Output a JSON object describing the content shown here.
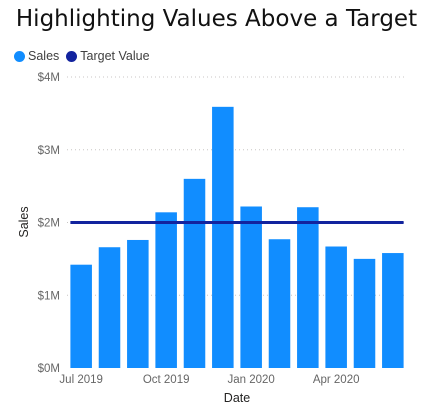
{
  "title": "Highlighting Values Above a Target",
  "legend": [
    {
      "label": "Sales",
      "color": "#118DFF"
    },
    {
      "label": "Target Value",
      "color": "#12239E"
    }
  ],
  "chart_data": {
    "type": "bar",
    "title": "Highlighting Values Above a Target",
    "xlabel": "Date",
    "ylabel": "Sales",
    "categories": [
      "2019-07",
      "2019-08",
      "2019-09",
      "2019-10",
      "2019-11",
      "2019-12",
      "2020-01",
      "2020-02",
      "2020-03",
      "2020-04",
      "2020-05",
      "2020-06"
    ],
    "x_tick_labels": [
      {
        "label": "Jul 2019",
        "category": "2019-07"
      },
      {
        "label": "Oct 2019",
        "category": "2019-10"
      },
      {
        "label": "Jan 2020",
        "category": "2020-01"
      },
      {
        "label": "Apr 2020",
        "category": "2020-04"
      }
    ],
    "ylim": [
      0,
      4000000
    ],
    "y_ticks": [
      {
        "label": "$0M",
        "value": 0
      },
      {
        "label": "$1M",
        "value": 1000000
      },
      {
        "label": "$2M",
        "value": 2000000
      },
      {
        "label": "$3M",
        "value": 3000000
      },
      {
        "label": "$4M",
        "value": 4000000
      }
    ],
    "grid": true,
    "legend_position": "top-left",
    "series": [
      {
        "name": "Sales",
        "type": "bar",
        "color": "#118DFF",
        "values": [
          1420000,
          1660000,
          1760000,
          2140000,
          2600000,
          3590000,
          2220000,
          1770000,
          2210000,
          1670000,
          1500000,
          1580000
        ]
      },
      {
        "name": "Target Value",
        "type": "line",
        "color": "#12239E",
        "values": [
          2000000,
          2000000,
          2000000,
          2000000,
          2000000,
          2000000,
          2000000,
          2000000,
          2000000,
          2000000,
          2000000,
          2000000
        ]
      }
    ]
  }
}
